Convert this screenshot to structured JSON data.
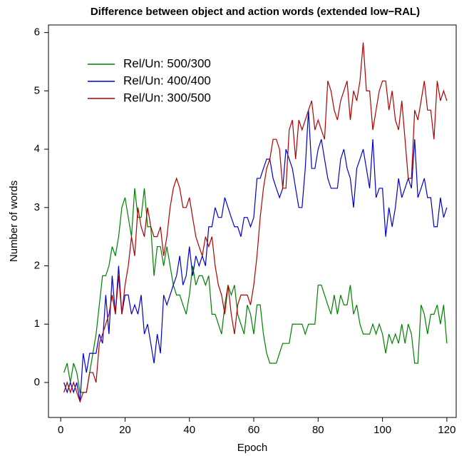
{
  "chart_data": {
    "type": "line",
    "title": "Difference between object and action words (extended low−RAL)",
    "x_label": "Epoch",
    "y_label": "Number of words",
    "x": [
      1,
      2,
      3,
      4,
      5,
      6,
      7,
      8,
      9,
      10,
      11,
      12,
      13,
      14,
      15,
      16,
      17,
      18,
      19,
      20,
      21,
      22,
      23,
      24,
      25,
      26,
      27,
      28,
      29,
      30,
      31,
      32,
      33,
      34,
      35,
      36,
      37,
      38,
      39,
      40,
      41,
      42,
      43,
      44,
      45,
      46,
      47,
      48,
      49,
      50,
      51,
      52,
      53,
      54,
      55,
      56,
      57,
      58,
      59,
      60,
      61,
      62,
      63,
      64,
      65,
      66,
      67,
      68,
      69,
      70,
      71,
      72,
      73,
      74,
      75,
      76,
      77,
      78,
      79,
      80,
      81,
      82,
      83,
      84,
      85,
      86,
      87,
      88,
      89,
      90,
      91,
      92,
      93,
      94,
      95,
      96,
      97,
      98,
      99,
      100,
      101,
      102,
      103,
      104,
      105,
      106,
      107,
      108,
      109,
      110,
      111,
      112,
      113,
      114,
      115,
      116,
      117,
      118,
      119,
      120
    ],
    "series": [
      {
        "name": "Rel/Un: 500/300",
        "color": "#008000",
        "values": [
          0.17,
          0.33,
          0,
          0.33,
          0.17,
          -0.17,
          -0.17,
          -0.17,
          0.17,
          0.5,
          0.83,
          1.33,
          1.83,
          1.83,
          2,
          2.33,
          2.17,
          2.5,
          3,
          3.17,
          2.83,
          2.5,
          3.33,
          2.83,
          2.83,
          3.33,
          2.67,
          2.67,
          1.83,
          2.33,
          2.33,
          2,
          2.33,
          2,
          1.67,
          1.5,
          1.5,
          1.33,
          1.17,
          1.5,
          2,
          1.67,
          1.83,
          1.83,
          1.67,
          1.83,
          1.17,
          1.17,
          1,
          0.83,
          1.33,
          1.67,
          1.5,
          1.67,
          1.17,
          1,
          0.83,
          1.33,
          1.17,
          0.83,
          1.33,
          1.33,
          0.83,
          0.5,
          0.33,
          0.33,
          0.33,
          0.5,
          0.67,
          0.67,
          0.67,
          1,
          1,
          1,
          1,
          0.83,
          1,
          1,
          1,
          1.67,
          1.67,
          1.5,
          1.33,
          1.17,
          1.5,
          1.17,
          1.5,
          1.33,
          1.33,
          1.67,
          1.17,
          1.33,
          1,
          0.83,
          0.83,
          0.83,
          1,
          0.83,
          1,
          0.83,
          0.5,
          0.83,
          0.67,
          0.83,
          0.67,
          1,
          0.67,
          1,
          0.83,
          0.33,
          0.33,
          1.33,
          1.17,
          0.83,
          1.17,
          1.17,
          1.33,
          1,
          1.33,
          0.67
        ]
      },
      {
        "name": "Rel/Un: 400/400",
        "color": "#0000cc",
        "values": [
          0,
          -0.17,
          0,
          -0.17,
          0,
          -0.33,
          0.5,
          0.17,
          0.5,
          0.5,
          0.5,
          0.83,
          0.67,
          1.5,
          0.83,
          1.83,
          1.17,
          2,
          1.17,
          1.5,
          1.5,
          1.17,
          1.33,
          1.17,
          1.5,
          0.83,
          1,
          0.67,
          0.33,
          0.83,
          0.5,
          1.5,
          1.33,
          1.5,
          1.67,
          1.83,
          2.17,
          1.67,
          1.83,
          2.33,
          1.83,
          2.17,
          2,
          2.17,
          2,
          2.67,
          2.67,
          3,
          2.83,
          2.83,
          3.17,
          3,
          2.83,
          2.67,
          2.67,
          2.5,
          2.83,
          2.83,
          2.67,
          2.83,
          3.5,
          3.5,
          3.67,
          3.83,
          3.83,
          3.5,
          3.33,
          3.17,
          3.33,
          4,
          3.83,
          3.67,
          3.33,
          3,
          3,
          3.67,
          4.67,
          3.67,
          3.67,
          4,
          4.17,
          3.83,
          3.5,
          3.33,
          3.33,
          3.33,
          3.83,
          4,
          3.67,
          3.5,
          3,
          3.67,
          3.83,
          4,
          3.67,
          3.33,
          4.17,
          3.17,
          3.33,
          3.33,
          2.5,
          3,
          2.67,
          3,
          3.5,
          3.17,
          3.33,
          3.5,
          3.33,
          4.17,
          3.17,
          3.33,
          3.5,
          3.17,
          3.17,
          2.67,
          2.67,
          3.17,
          2.83,
          3
        ]
      },
      {
        "name": "Rel/Un: 300/500",
        "color": "#b00000",
        "values": [
          -0.17,
          0,
          -0.17,
          0,
          -0.17,
          -0.33,
          -0.17,
          -0.17,
          0.17,
          0.17,
          0,
          0.67,
          0.83,
          1,
          1.17,
          1.5,
          1.17,
          1.83,
          1.17,
          1.67,
          2,
          2.5,
          2.17,
          3,
          2.67,
          2.5,
          3,
          2.67,
          2.5,
          2.5,
          2.67,
          2.17,
          2.5,
          3,
          3.33,
          3.5,
          3.33,
          3,
          3,
          3.17,
          2.83,
          2.5,
          2.33,
          2.17,
          2.5,
          2.33,
          2.5,
          2,
          1.67,
          1.5,
          1.17,
          1.67,
          1.17,
          0.83,
          1.33,
          1.5,
          1.5,
          1.5,
          1.33,
          1.67,
          2.17,
          2.83,
          3.33,
          3.67,
          3.83,
          4.17,
          4.17,
          4,
          3.33,
          3.33,
          4.33,
          4.5,
          3.83,
          4.5,
          4.33,
          4.5,
          4.67,
          4.83,
          4.33,
          4.5,
          4.33,
          4.17,
          5.17,
          5,
          4.67,
          4.5,
          4.83,
          5,
          5.17,
          4.5,
          5,
          4.83,
          5.17,
          5.83,
          5,
          5,
          4.33,
          4.67,
          5,
          5.17,
          5.17,
          4.67,
          5,
          4.5,
          4.33,
          4.83,
          4.17,
          3.5,
          3.5,
          4.67,
          4.5,
          4.83,
          5.17,
          4.67,
          4.67,
          4.17,
          5.17,
          4.83,
          5,
          4.83
        ]
      }
    ],
    "xlim": [
      -3.8,
      122.9
    ],
    "ylim": [
      -0.6,
      6.13
    ],
    "xticks": [
      0,
      20,
      40,
      60,
      80,
      100,
      120
    ],
    "yticks": [
      0,
      1,
      2,
      3,
      4,
      5,
      6
    ],
    "legend": "upper left"
  }
}
